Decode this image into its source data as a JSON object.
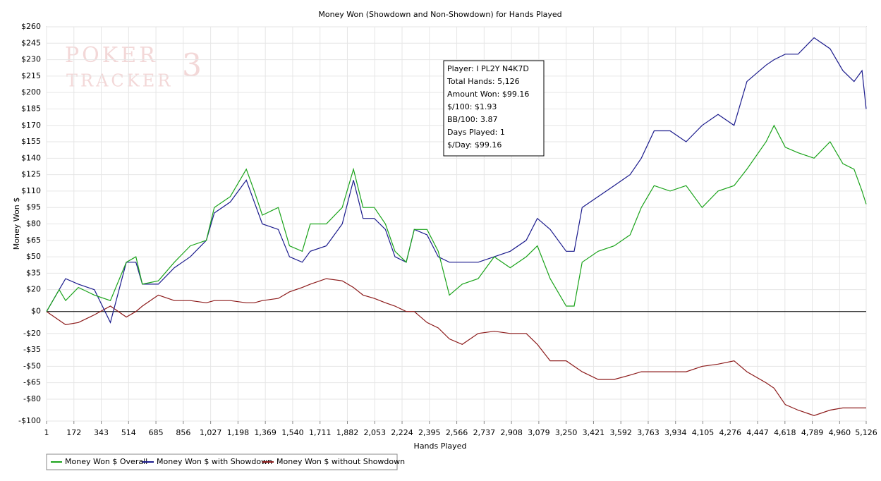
{
  "chart_data": {
    "type": "line",
    "title": "Money Won (Showdown and Non-Showdown) for Hands Played",
    "watermark": [
      "POKER",
      "TRACKER",
      "3"
    ],
    "x_label": "Hands Played",
    "y_label": "Money Won $",
    "xlim": [
      1,
      5126
    ],
    "ylim": [
      -100,
      260
    ],
    "xticks": [
      1,
      172,
      343,
      514,
      685,
      856,
      {
        "value": 1027,
        "label": "1,027"
      },
      {
        "value": 1198,
        "label": "1,198"
      },
      {
        "value": 1369,
        "label": "1,369"
      },
      {
        "value": 1540,
        "label": "1,540"
      },
      {
        "value": 1711,
        "label": "1,711"
      },
      {
        "value": 1882,
        "label": "1,882"
      },
      {
        "value": 2053,
        "label": "2,053"
      },
      {
        "value": 2224,
        "label": "2,224"
      },
      {
        "value": 2395,
        "label": "2,395"
      },
      {
        "value": 2566,
        "label": "2,566"
      },
      {
        "value": 2737,
        "label": "2,737"
      },
      {
        "value": 2908,
        "label": "2,908"
      },
      {
        "value": 3079,
        "label": "3,079"
      },
      {
        "value": 3250,
        "label": "3,250"
      },
      {
        "value": 3421,
        "label": "3,421"
      },
      {
        "value": 3592,
        "label": "3,592"
      },
      {
        "value": 3763,
        "label": "3,763"
      },
      {
        "value": 3934,
        "label": "3,934"
      },
      {
        "value": 4105,
        "label": "4,105"
      },
      {
        "value": 4276,
        "label": "4,276"
      },
      {
        "value": 4447,
        "label": "4,447"
      },
      {
        "value": 4618,
        "label": "4,618"
      },
      {
        "value": 4789,
        "label": "4,789"
      },
      {
        "value": 4960,
        "label": "4,960"
      },
      {
        "value": 5126,
        "label": "5,126"
      }
    ],
    "yticks": [
      {
        "value": 260,
        "label": "$260"
      },
      {
        "value": 245,
        "label": "$245"
      },
      {
        "value": 230,
        "label": "$230"
      },
      {
        "value": 215,
        "label": "$215"
      },
      {
        "value": 200,
        "label": "$200"
      },
      {
        "value": 185,
        "label": "$185"
      },
      {
        "value": 170,
        "label": "$170"
      },
      {
        "value": 155,
        "label": "$155"
      },
      {
        "value": 140,
        "label": "$140"
      },
      {
        "value": 125,
        "label": "$125"
      },
      {
        "value": 110,
        "label": "$110"
      },
      {
        "value": 95,
        "label": "$95"
      },
      {
        "value": 80,
        "label": "$80"
      },
      {
        "value": 65,
        "label": "$65"
      },
      {
        "value": 50,
        "label": "$50"
      },
      {
        "value": 35,
        "label": "$35"
      },
      {
        "value": 20,
        "label": "$20"
      },
      {
        "value": 0,
        "label": "$0"
      },
      {
        "value": -20,
        "label": "-$20"
      },
      {
        "value": -35,
        "label": "-$35"
      },
      {
        "value": -50,
        "label": "-$50"
      },
      {
        "value": -65,
        "label": "-$65"
      },
      {
        "value": -80,
        "label": "-$80"
      },
      {
        "value": -100,
        "label": "-$100"
      }
    ],
    "grid": true,
    "legend": "bottom-left",
    "x": [
      1,
      80,
      120,
      200,
      300,
      400,
      500,
      560,
      600,
      700,
      800,
      900,
      1000,
      1050,
      1150,
      1250,
      1300,
      1350,
      1450,
      1520,
      1600,
      1650,
      1750,
      1850,
      1920,
      1980,
      2050,
      2120,
      2180,
      2250,
      2300,
      2380,
      2450,
      2520,
      2600,
      2700,
      2800,
      2900,
      3000,
      3070,
      3150,
      3250,
      3300,
      3350,
      3450,
      3550,
      3650,
      3720,
      3800,
      3900,
      4000,
      4100,
      4200,
      4300,
      4380,
      4500,
      4550,
      4620,
      4700,
      4800,
      4900,
      4980,
      5050,
      5100,
      5126
    ],
    "series": [
      {
        "name": "Money Won $ Overall",
        "color": "#1aa31a",
        "values": [
          0,
          20,
          10,
          22,
          15,
          10,
          45,
          50,
          25,
          28,
          45,
          60,
          65,
          95,
          105,
          130,
          110,
          88,
          95,
          60,
          55,
          80,
          80,
          95,
          130,
          95,
          95,
          80,
          55,
          45,
          75,
          75,
          55,
          15,
          25,
          30,
          50,
          40,
          50,
          60,
          30,
          5,
          5,
          45,
          55,
          60,
          70,
          95,
          115,
          110,
          115,
          95,
          110,
          115,
          130,
          155,
          170,
          150,
          145,
          140,
          155,
          135,
          130,
          110,
          98
        ]
      },
      {
        "name": "Money Won $ with Showdown",
        "color": "#1a1a8c",
        "values": [
          0,
          20,
          30,
          25,
          20,
          -10,
          45,
          45,
          25,
          25,
          40,
          50,
          65,
          90,
          100,
          120,
          100,
          80,
          75,
          50,
          45,
          55,
          60,
          80,
          120,
          85,
          85,
          75,
          50,
          45,
          75,
          70,
          50,
          45,
          45,
          45,
          50,
          55,
          65,
          85,
          75,
          55,
          55,
          95,
          105,
          115,
          125,
          140,
          165,
          165,
          155,
          170,
          180,
          170,
          210,
          225,
          230,
          235,
          235,
          250,
          240,
          220,
          210,
          220,
          185
        ]
      },
      {
        "name": "Money Won $ without Showdown",
        "color": "#8c1a1a",
        "values": [
          0,
          -8,
          -12,
          -10,
          -3,
          5,
          -5,
          0,
          5,
          15,
          10,
          10,
          8,
          10,
          10,
          8,
          8,
          10,
          12,
          18,
          22,
          25,
          30,
          28,
          22,
          15,
          12,
          8,
          5,
          0,
          0,
          -10,
          -15,
          -25,
          -30,
          -20,
          -18,
          -20,
          -20,
          -30,
          -45,
          -45,
          -50,
          -55,
          -62,
          -62,
          -58,
          -55,
          -55,
          -55,
          -55,
          -50,
          -48,
          -45,
          -55,
          -65,
          -70,
          -85,
          -90,
          -95,
          -90,
          -88,
          -88,
          -88,
          -88
        ]
      }
    ],
    "info_box": [
      "Player: I PL2Y N4K7D",
      "Total Hands: 5,126",
      "Amount Won: $99.16",
      "$/100: $1.93",
      "BB/100: 3.87",
      "Days Played: 1",
      "$/Day: $99.16"
    ]
  }
}
